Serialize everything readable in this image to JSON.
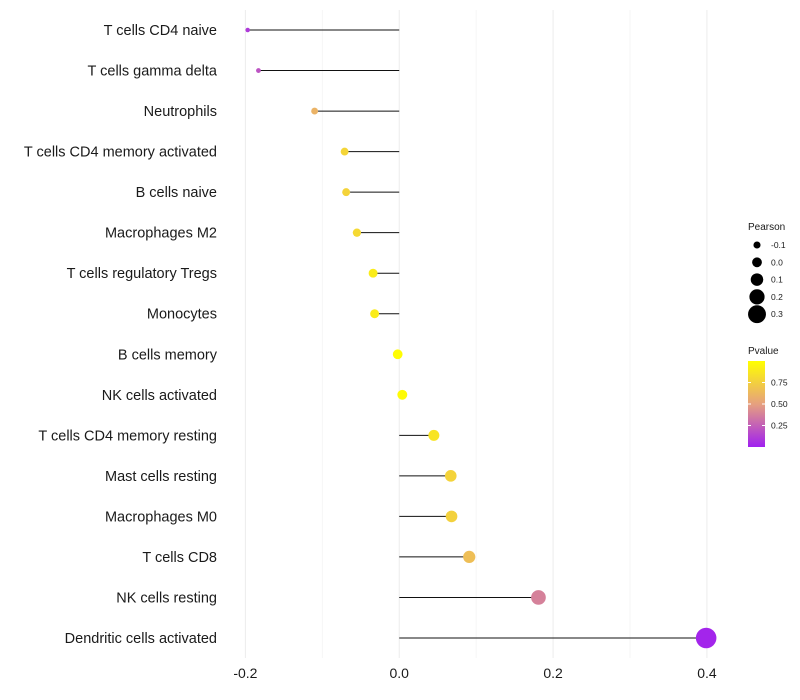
{
  "chart_data": {
    "type": "scatter",
    "subtype": "lollipop",
    "title": "",
    "xlabel": "",
    "ylabel": "",
    "xlim": [
      -0.22,
      0.43
    ],
    "x_ticks": [
      -0.2,
      0.0,
      0.2,
      0.4
    ],
    "x_tick_labels": [
      "-0.2",
      "0.0",
      "0.2",
      "0.4"
    ],
    "grid": true,
    "categories": [
      "T cells CD4 naive",
      "T cells gamma delta",
      "Neutrophils",
      "T cells CD4 memory activated",
      "B cells naive",
      "Macrophages M2",
      "T cells regulatory  Tregs ",
      "Monocytes",
      "B cells memory",
      "NK cells activated",
      "T cells CD4 memory resting",
      "Mast cells resting",
      "Macrophages M0",
      "T cells CD8",
      "NK cells resting",
      "Dendritic cells activated"
    ],
    "pearson": [
      -0.197,
      -0.183,
      -0.11,
      -0.071,
      -0.069,
      -0.055,
      -0.034,
      -0.032,
      -0.002,
      0.004,
      0.045,
      0.067,
      0.068,
      0.091,
      0.181,
      0.399
    ],
    "pvalue": [
      0.1,
      0.2,
      0.6,
      0.78,
      0.77,
      0.8,
      0.9,
      0.9,
      0.99,
      0.98,
      0.86,
      0.77,
      0.76,
      0.66,
      0.38,
      0.02
    ],
    "legend": {
      "position": "right",
      "size_title": "Pearson",
      "size_labels": [
        "-0.1",
        "0.0",
        "0.1",
        "0.2",
        "0.3"
      ],
      "size_values": [
        -0.1,
        0.0,
        0.1,
        0.2,
        0.3
      ],
      "color_title": "Pvalue",
      "color_labels": [
        "0.75",
        "0.50",
        "0.25"
      ],
      "color_values": [
        0.75,
        0.5,
        0.25
      ],
      "color_range": [
        0.0,
        1.0
      ],
      "color_low": "#a020f0",
      "color_mid": "#e6a07f",
      "color_high": "#ffff00"
    }
  }
}
